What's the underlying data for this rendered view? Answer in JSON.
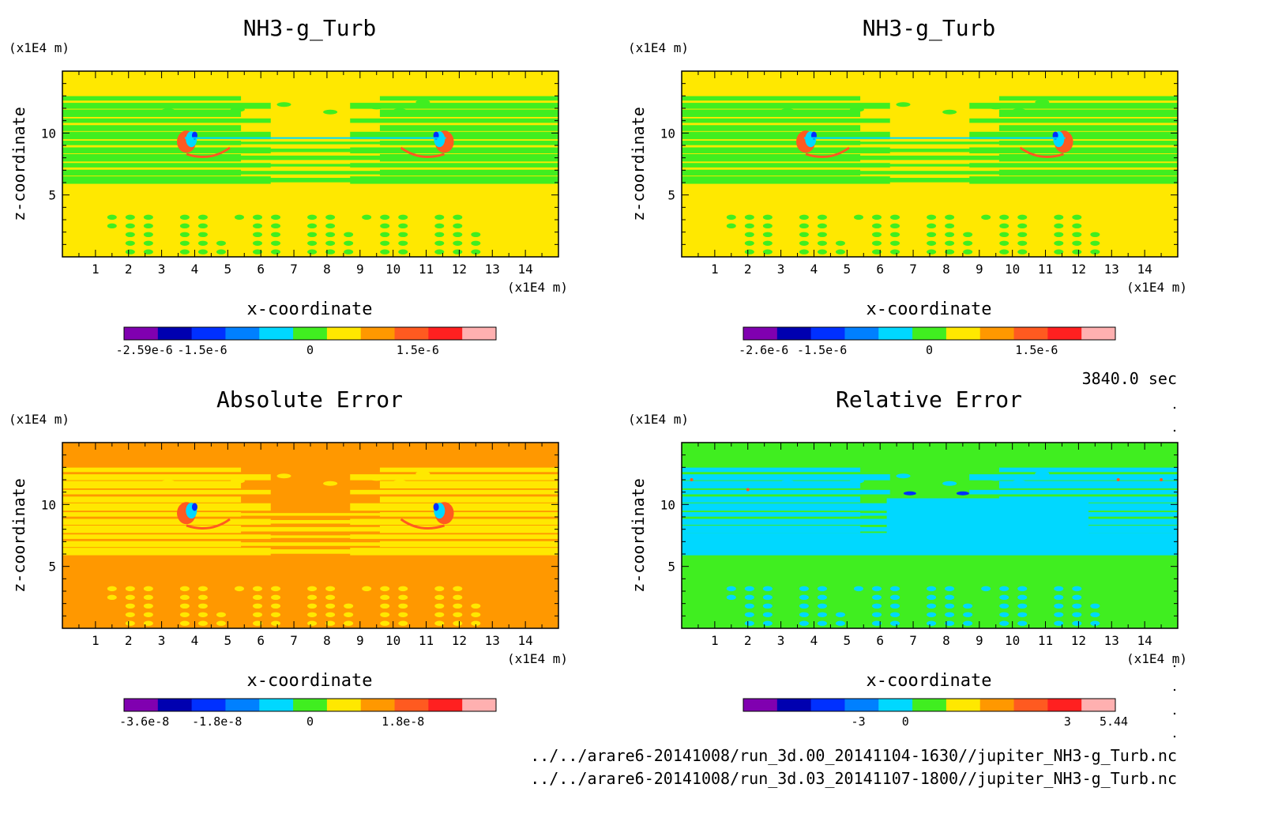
{
  "timestamp": "3840.0 sec",
  "files": [
    "../../arare6-20141008/run_3d.00_20141104-1630//jupiter_NH3-g_Turb.nc",
    "../../arare6-20141008/run_3d.03_20141107-1800//jupiter_NH3-g_Turb.nc"
  ],
  "chart_data": [
    {
      "type": "heatmap",
      "title": "NH3-g_Turb",
      "xlabel": "x-coordinate",
      "ylabel": "z-coordinate",
      "x_unit": "(x1E4 m)",
      "y_unit": "(x1E4 m)",
      "xlim": [
        0,
        15
      ],
      "ylim": [
        0,
        15
      ],
      "xticks": [
        1,
        2,
        3,
        4,
        5,
        6,
        7,
        8,
        9,
        10,
        11,
        12,
        13,
        14
      ],
      "yticks": [
        5,
        10
      ],
      "background": "#ffe800",
      "colorbar": {
        "colors": [
          "#8000b0",
          "#0000b0",
          "#0030ff",
          "#0080ff",
          "#00d8ff",
          "#40ee20",
          "#ffe800",
          "#ff9800",
          "#ff5a20",
          "#ff2020",
          "#ffb0b0"
        ],
        "tick_labels": [
          "-2.59e-6",
          "-1.5e-6",
          "0",
          "1.5e-6"
        ],
        "tick_values": [
          -2.59e-06,
          -1.5e-06,
          0,
          1.5e-06
        ]
      }
    },
    {
      "type": "heatmap",
      "title": "NH3-g_Turb",
      "xlabel": "x-coordinate",
      "ylabel": "z-coordinate",
      "x_unit": "(x1E4 m)",
      "y_unit": "(x1E4 m)",
      "xlim": [
        0,
        15
      ],
      "ylim": [
        0,
        15
      ],
      "xticks": [
        1,
        2,
        3,
        4,
        5,
        6,
        7,
        8,
        9,
        10,
        11,
        12,
        13,
        14
      ],
      "yticks": [
        5,
        10
      ],
      "background": "#ffe800",
      "colorbar": {
        "colors": [
          "#8000b0",
          "#0000b0",
          "#0030ff",
          "#0080ff",
          "#00d8ff",
          "#40ee20",
          "#ffe800",
          "#ff9800",
          "#ff5a20",
          "#ff2020",
          "#ffb0b0"
        ],
        "tick_labels": [
          "-2.6e-6",
          "-1.5e-6",
          "0",
          "1.5e-6"
        ],
        "tick_values": [
          -2.6e-06,
          -1.5e-06,
          0,
          1.5e-06
        ]
      }
    },
    {
      "type": "heatmap",
      "title": "Absolute Error",
      "xlabel": "x-coordinate",
      "ylabel": "z-coordinate",
      "x_unit": "(x1E4 m)",
      "y_unit": "(x1E4 m)",
      "xlim": [
        0,
        15
      ],
      "ylim": [
        0,
        15
      ],
      "xticks": [
        1,
        2,
        3,
        4,
        5,
        6,
        7,
        8,
        9,
        10,
        11,
        12,
        13,
        14
      ],
      "yticks": [
        5,
        10
      ],
      "background": "#ff9800",
      "colorbar": {
        "colors": [
          "#8000b0",
          "#0000b0",
          "#0030ff",
          "#0080ff",
          "#00d8ff",
          "#40ee20",
          "#ffe800",
          "#ff9800",
          "#ff5a20",
          "#ff2020",
          "#ffb0b0"
        ],
        "tick_labels": [
          "-3.6e-8",
          "-1.8e-8",
          "0",
          "1.8e-8"
        ],
        "tick_values": [
          -3.6e-08,
          -1.8e-08,
          0,
          1.8e-08
        ]
      }
    },
    {
      "type": "heatmap",
      "title": "Relative Error",
      "xlabel": "x-coordinate",
      "ylabel": "z-coordinate",
      "x_unit": "(x1E4 m)",
      "y_unit": "(x1E4 m)",
      "xlim": [
        0,
        15
      ],
      "ylim": [
        0,
        15
      ],
      "xticks": [
        1,
        2,
        3,
        4,
        5,
        6,
        7,
        8,
        9,
        10,
        11,
        12,
        13,
        14
      ],
      "yticks": [
        5,
        10
      ],
      "background": "#40ee20",
      "colorbar": {
        "colors": [
          "#8000b0",
          "#0000b0",
          "#0030ff",
          "#0080ff",
          "#00d8ff",
          "#40ee20",
          "#ffe800",
          "#ff9800",
          "#ff5a20",
          "#ff2020",
          "#ffb0b0"
        ],
        "tick_labels": [
          "-3",
          "0",
          "3",
          "5.44"
        ],
        "tick_values": [
          -3,
          0,
          3,
          5.44
        ]
      }
    }
  ]
}
